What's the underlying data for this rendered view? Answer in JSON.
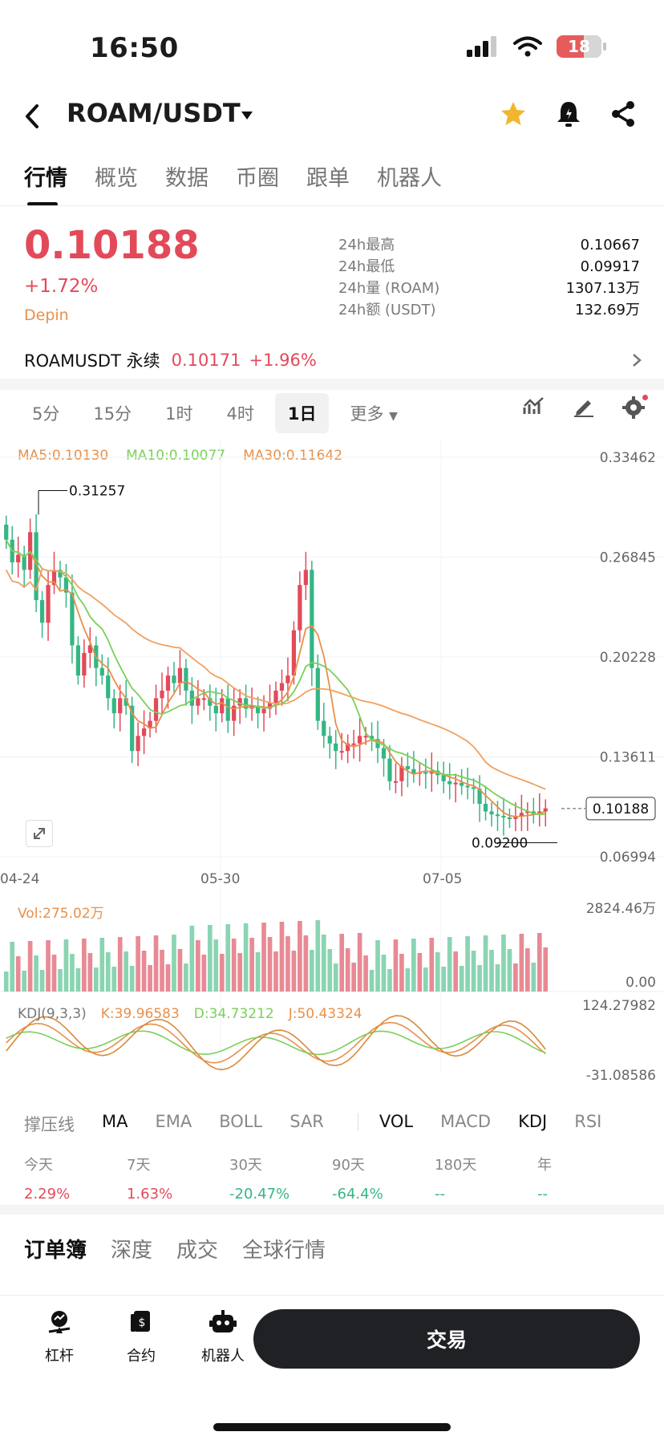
{
  "status_bar": {
    "time": "16:50",
    "battery": "18"
  },
  "header": {
    "pair": "ROAM/USDT"
  },
  "tabs": [
    "行情",
    "概览",
    "数据",
    "币圈",
    "跟单",
    "机器人"
  ],
  "price": {
    "last": "0.10188",
    "change": "+1.72%",
    "tag": "Depin"
  },
  "stats": [
    {
      "label": "24h最高",
      "value": "0.10667"
    },
    {
      "label": "24h最低",
      "value": "0.09917"
    },
    {
      "label": "24h量 (ROAM)",
      "value": "1307.13万"
    },
    {
      "label": "24h额 (USDT)",
      "value": "132.69万"
    }
  ],
  "perpetual": {
    "name": "ROAMUSDT 永续",
    "price": "0.10171",
    "change": "+1.96%"
  },
  "intervals": [
    "5分",
    "15分",
    "1时",
    "4时",
    "1日",
    "更多"
  ],
  "chart_legend": {
    "ma5": "MA5:0.10130",
    "ma10": "MA10:0.10077",
    "ma30": "MA30:0.11642",
    "vol": "Vol:275.02万",
    "kdj_title": "KDJ(9,3,3)",
    "kdj_k": "K:39.96583",
    "kdj_d": "D:34.73212",
    "kdj_j": "J:50.43324"
  },
  "chart_data": {
    "type": "candlestick",
    "price_axis": [
      "0.33462",
      "0.26845",
      "0.20228",
      "0.13611",
      "0.06994"
    ],
    "x_ticks": [
      "04-24",
      "05-30",
      "07-05"
    ],
    "max_label": "0.31257",
    "min_label": "0.09200",
    "current_label": "0.10188",
    "volume_axis": [
      "2824.46万",
      "0.00"
    ],
    "kdj_axis": [
      "124.27982",
      "-31.08586"
    ],
    "closes": [
      0.28,
      0.265,
      0.27,
      0.26,
      0.285,
      0.24,
      0.225,
      0.25,
      0.26,
      0.255,
      0.245,
      0.21,
      0.19,
      0.205,
      0.21,
      0.195,
      0.19,
      0.175,
      0.165,
      0.175,
      0.17,
      0.14,
      0.15,
      0.155,
      0.16,
      0.175,
      0.18,
      0.19,
      0.185,
      0.195,
      0.18,
      0.17,
      0.175,
      0.175,
      0.17,
      0.165,
      0.175,
      0.16,
      0.17,
      0.175,
      0.168,
      0.17,
      0.165,
      0.168,
      0.172,
      0.18,
      0.185,
      0.19,
      0.22,
      0.25,
      0.26,
      0.195,
      0.16,
      0.15,
      0.145,
      0.14,
      0.14,
      0.145,
      0.145,
      0.15,
      0.15,
      0.148,
      0.142,
      0.135,
      0.12,
      0.12,
      0.13,
      0.128,
      0.125,
      0.126,
      0.125,
      0.127,
      0.124,
      0.12,
      0.118,
      0.119,
      0.117,
      0.116,
      0.115,
      0.105,
      0.1,
      0.098,
      0.097,
      0.096,
      0.095,
      0.097,
      0.099,
      0.1,
      0.098,
      0.1,
      0.102
    ],
    "series_color_up": "#e24a5a",
    "series_color_down": "#35b684"
  },
  "indicators": {
    "overlay": [
      "撑压线",
      "MA",
      "EMA",
      "BOLL",
      "SAR"
    ],
    "sub": [
      "VOL",
      "MACD",
      "KDJ",
      "RSI"
    ]
  },
  "performance": [
    {
      "label": "今天",
      "value": "2.29%",
      "dir": "up"
    },
    {
      "label": "7天",
      "value": "1.63%",
      "dir": "up"
    },
    {
      "label": "30天",
      "value": "-20.47%",
      "dir": "down"
    },
    {
      "label": "90天",
      "value": "-64.4%",
      "dir": "down"
    },
    {
      "label": "180天",
      "value": "--",
      "dir": "none"
    },
    {
      "label": "年",
      "value": "--",
      "dir": "none"
    }
  ],
  "book_tabs": [
    "订单簿",
    "深度",
    "成交",
    "全球行情"
  ],
  "bottom": {
    "leverage": "杠杆",
    "contract": "合约",
    "robot": "机器人",
    "trade": "交易"
  }
}
